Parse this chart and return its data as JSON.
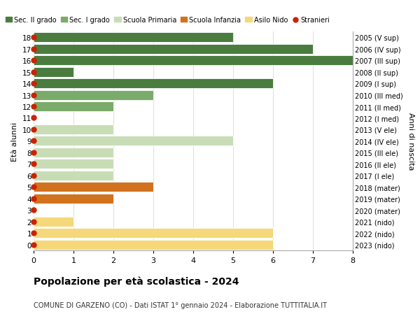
{
  "ages": [
    18,
    17,
    16,
    15,
    14,
    13,
    12,
    11,
    10,
    9,
    8,
    7,
    6,
    5,
    4,
    3,
    2,
    1,
    0
  ],
  "years": [
    "2005 (V sup)",
    "2006 (IV sup)",
    "2007 (III sup)",
    "2008 (II sup)",
    "2009 (I sup)",
    "2010 (III med)",
    "2011 (II med)",
    "2012 (I med)",
    "2013 (V ele)",
    "2014 (IV ele)",
    "2015 (III ele)",
    "2016 (II ele)",
    "2017 (I ele)",
    "2018 (mater)",
    "2019 (mater)",
    "2020 (mater)",
    "2021 (nido)",
    "2022 (nido)",
    "2023 (nido)"
  ],
  "bar_values": [
    5,
    7,
    8,
    1,
    6,
    3,
    2,
    0,
    2,
    5,
    2,
    2,
    2,
    3,
    2,
    0,
    1,
    6,
    6
  ],
  "bar_colors": [
    "#4a7c3f",
    "#4a7c3f",
    "#4a7c3f",
    "#4a7c3f",
    "#4a7c3f",
    "#7aab6a",
    "#7aab6a",
    "#7aab6a",
    "#c8ddb5",
    "#c8ddb5",
    "#c8ddb5",
    "#c8ddb5",
    "#c8ddb5",
    "#d2721e",
    "#d2721e",
    "#d2721e",
    "#f5d87a",
    "#f5d87a",
    "#f5d87a"
  ],
  "dot_color": "#cc2200",
  "dot_size": 25,
  "legend_labels": [
    "Sec. II grado",
    "Sec. I grado",
    "Scuola Primaria",
    "Scuola Infanzia",
    "Asilo Nido",
    "Stranieri"
  ],
  "legend_colors": [
    "#4a7c3f",
    "#7aab6a",
    "#c8ddb5",
    "#d2721e",
    "#f5d87a",
    "#cc2200"
  ],
  "ylabel_text": "Età alunni",
  "right_ylabel": "Anni di nascita",
  "xlim": [
    0,
    8
  ],
  "ylim": [
    -0.5,
    18.5
  ],
  "xticks": [
    0,
    1,
    2,
    3,
    4,
    5,
    6,
    7,
    8
  ],
  "title": "Popolazione per età scolastica - 2024",
  "subtitle": "COMUNE DI GARZENO (CO) - Dati ISTAT 1° gennaio 2024 - Elaborazione TUTTITALIA.IT",
  "background_color": "#ffffff",
  "bar_height": 0.85,
  "grid_color": "#e0e0e0"
}
